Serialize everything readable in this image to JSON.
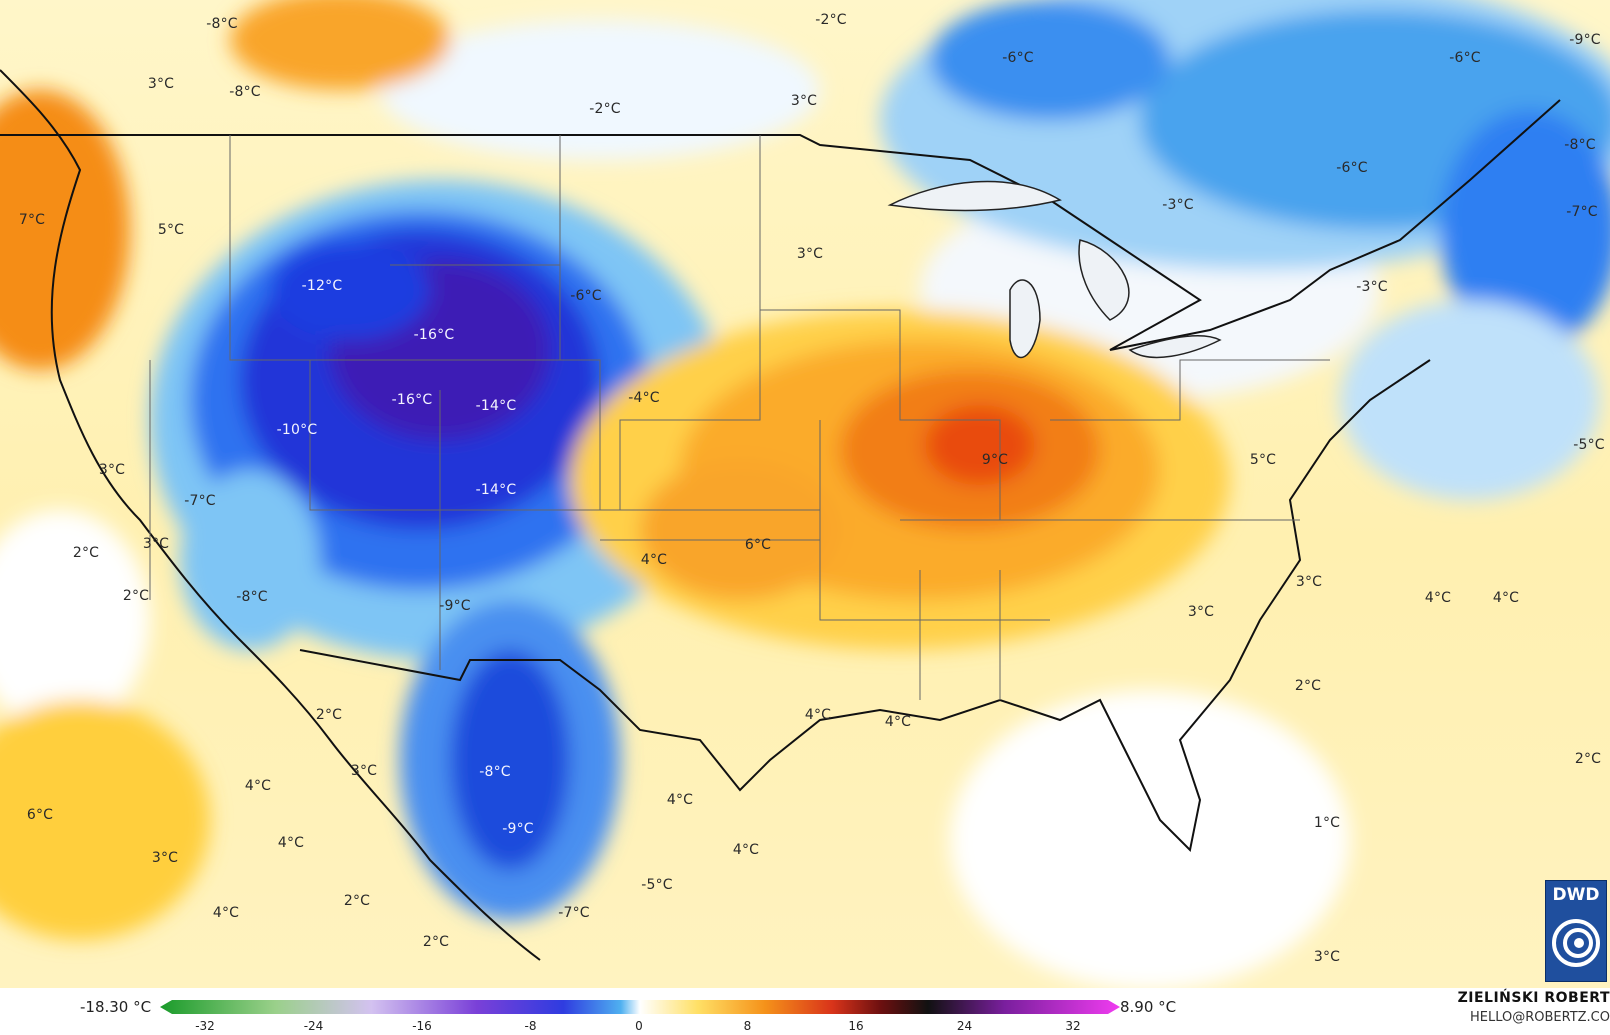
{
  "map": {
    "labels": [
      {
        "id": "l1",
        "text": "-8°C"
      },
      {
        "id": "l2",
        "text": "3°C"
      },
      {
        "id": "l3",
        "text": "-8°C"
      },
      {
        "id": "l4",
        "text": "-2°C"
      },
      {
        "id": "l5",
        "text": "-2°C"
      },
      {
        "id": "l6",
        "text": "3°C"
      },
      {
        "id": "l7",
        "text": "-6°C"
      },
      {
        "id": "l8",
        "text": "-6°C"
      },
      {
        "id": "l9",
        "text": "-9°C"
      },
      {
        "id": "l10",
        "text": "-8°C"
      },
      {
        "id": "l11",
        "text": "-6°C"
      },
      {
        "id": "l12",
        "text": "-3°C"
      },
      {
        "id": "l13",
        "text": "-7°C"
      },
      {
        "id": "l14",
        "text": "7°C"
      },
      {
        "id": "l15",
        "text": "5°C"
      },
      {
        "id": "l16",
        "text": "3°C"
      },
      {
        "id": "l17",
        "text": "-12°C"
      },
      {
        "id": "l18",
        "text": "-16°C"
      },
      {
        "id": "l19",
        "text": "-6°C"
      },
      {
        "id": "l20",
        "text": "-3°C"
      },
      {
        "id": "l21",
        "text": "-16°C"
      },
      {
        "id": "l22",
        "text": "-14°C"
      },
      {
        "id": "l23",
        "text": "-4°C"
      },
      {
        "id": "l24",
        "text": "-10°C"
      },
      {
        "id": "l25",
        "text": "3°C"
      },
      {
        "id": "l26",
        "text": "9°C"
      },
      {
        "id": "l27",
        "text": "5°C"
      },
      {
        "id": "l28",
        "text": "-5°C"
      },
      {
        "id": "l29",
        "text": "-7°C"
      },
      {
        "id": "l30",
        "text": "-14°C"
      },
      {
        "id": "l31",
        "text": "2°C"
      },
      {
        "id": "l32",
        "text": "3°C"
      },
      {
        "id": "l33",
        "text": "6°C"
      },
      {
        "id": "l34",
        "text": "4°C"
      },
      {
        "id": "l35",
        "text": "2°C"
      },
      {
        "id": "l36",
        "text": "-8°C"
      },
      {
        "id": "l37",
        "text": "-9°C"
      },
      {
        "id": "l38",
        "text": "3°C"
      },
      {
        "id": "l39",
        "text": "3°C"
      },
      {
        "id": "l40",
        "text": "4°C"
      },
      {
        "id": "l41",
        "text": "4°C"
      },
      {
        "id": "l42",
        "text": "2°C"
      },
      {
        "id": "l43",
        "text": "4°C"
      },
      {
        "id": "l44",
        "text": "4°C"
      },
      {
        "id": "l45",
        "text": "2°C"
      },
      {
        "id": "l46",
        "text": "3°C"
      },
      {
        "id": "l47",
        "text": "4°C"
      },
      {
        "id": "l48",
        "text": "-8°C"
      },
      {
        "id": "l49",
        "text": "6°C"
      },
      {
        "id": "l50",
        "text": "2°C"
      },
      {
        "id": "l51",
        "text": "4°C"
      },
      {
        "id": "l52",
        "text": "4°C"
      },
      {
        "id": "l53",
        "text": "-9°C"
      },
      {
        "id": "l54",
        "text": "1°C"
      },
      {
        "id": "l55",
        "text": "3°C"
      },
      {
        "id": "l56",
        "text": "4°C"
      },
      {
        "id": "l57",
        "text": "-5°C"
      },
      {
        "id": "l58",
        "text": "4°C"
      },
      {
        "id": "l59",
        "text": "2°C"
      },
      {
        "id": "l60",
        "text": "-7°C"
      },
      {
        "id": "l61",
        "text": "2°C"
      },
      {
        "id": "l62",
        "text": "3°C"
      }
    ]
  },
  "legend": {
    "min_label": "-18.30 °C",
    "max_label": "8.90 °C",
    "ticks": [
      "-32",
      "-24",
      "-16",
      "-8",
      "0",
      "8",
      "16",
      "24",
      "32"
    ]
  },
  "credit": {
    "name": "ZIELIŃSKI ROBERT",
    "email": "HELLO@ROBERTZ.CO"
  },
  "logo": {
    "text": "DWD"
  },
  "colors": {
    "extreme_cold": "#3a1fb8",
    "cold": "#2a5ff0",
    "cool": "#7cc3f4",
    "neutral": "#ffffff",
    "mild": "#ffe48a",
    "warm": "#f7a21a",
    "hot": "#e94c10"
  }
}
